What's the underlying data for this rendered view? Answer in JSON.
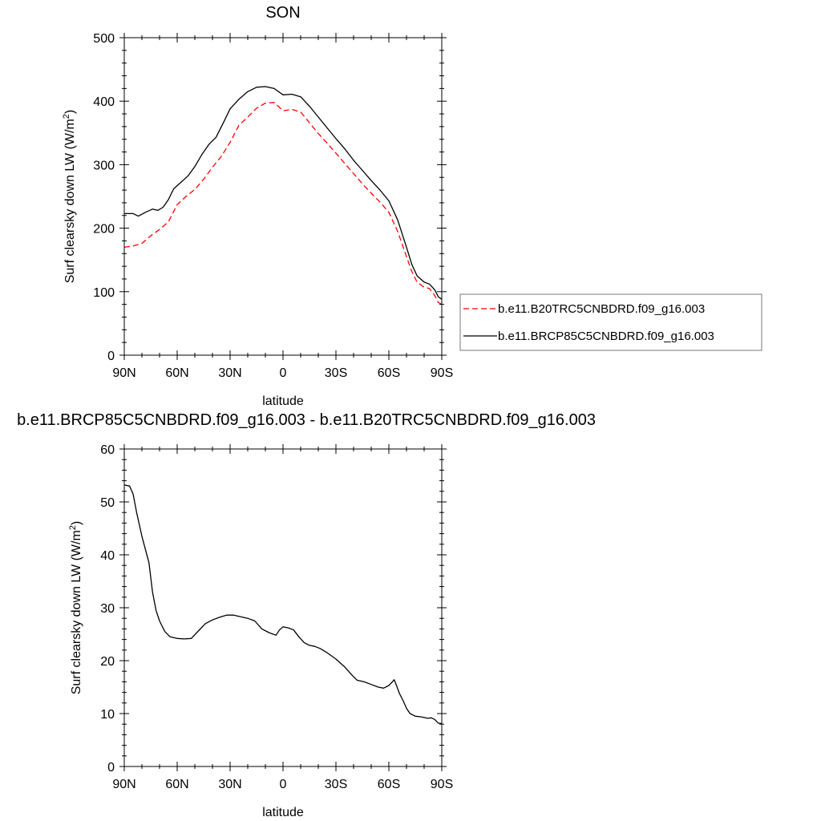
{
  "chart_data": [
    {
      "type": "line",
      "title": "SON",
      "xlabel": "latitude",
      "ylabel": "Surf clearsky down LW (W/m",
      "ylabel_sup": "2",
      "ylabel_close": ")",
      "xlim": [
        90,
        -90
      ],
      "ylim": [
        0,
        500
      ],
      "x_ticks": [
        90,
        60,
        30,
        0,
        -30,
        -60,
        -90
      ],
      "x_tick_labels": [
        "90N",
        "60N",
        "30N",
        "0",
        "30S",
        "60S",
        "90S"
      ],
      "y_ticks": [
        0,
        100,
        200,
        300,
        400,
        500
      ],
      "y_tick_labels": [
        "0",
        "100",
        "200",
        "300",
        "400",
        "500"
      ],
      "legend_position": "right",
      "series": [
        {
          "name": "b.e11.B20TRC5CNBDRD.f09_g16.003",
          "color": "#ff0000",
          "dash": "dashed",
          "points": [
            [
              90,
              170
            ],
            [
              85,
              172
            ],
            [
              80,
              176
            ],
            [
              75,
              188
            ],
            [
              70,
              198
            ],
            [
              65,
              210
            ],
            [
              60,
              237
            ],
            [
              55,
              250
            ],
            [
              50,
              261
            ],
            [
              45,
              277
            ],
            [
              40,
              296
            ],
            [
              35,
              313
            ],
            [
              30,
              335
            ],
            [
              25,
              362
            ],
            [
              20,
              375
            ],
            [
              15,
              389
            ],
            [
              10,
              397
            ],
            [
              5,
              398
            ],
            [
              0,
              385
            ],
            [
              -5,
              387
            ],
            [
              -10,
              383
            ],
            [
              -15,
              366
            ],
            [
              -20,
              349
            ],
            [
              -25,
              334
            ],
            [
              -30,
              318
            ],
            [
              -35,
              302
            ],
            [
              -40,
              286
            ],
            [
              -45,
              270
            ],
            [
              -50,
              255
            ],
            [
              -55,
              241
            ],
            [
              -60,
              225
            ],
            [
              -65,
              195
            ],
            [
              -70,
              155
            ],
            [
              -73,
              132
            ],
            [
              -76,
              115
            ],
            [
              -80,
              107
            ],
            [
              -83,
              105
            ],
            [
              -86,
              94
            ],
            [
              -88,
              83
            ],
            [
              -90,
              80
            ]
          ]
        },
        {
          "name": "b.e11.BRCP85C5CNBDRD.f09_g16.003",
          "color": "#000000",
          "dash": "solid",
          "points": [
            [
              90,
              223
            ],
            [
              85,
              223
            ],
            [
              82,
              219
            ],
            [
              78,
              225
            ],
            [
              74,
              230
            ],
            [
              71,
              228
            ],
            [
              68,
              233
            ],
            [
              65,
              245
            ],
            [
              62,
              262
            ],
            [
              58,
              272
            ],
            [
              54,
              282
            ],
            [
              50,
              297
            ],
            [
              46,
              316
            ],
            [
              42,
              332
            ],
            [
              38,
              343
            ],
            [
              34,
              365
            ],
            [
              30,
              388
            ],
            [
              25,
              403
            ],
            [
              20,
              415
            ],
            [
              15,
              422
            ],
            [
              10,
              423
            ],
            [
              5,
              420
            ],
            [
              0,
              410
            ],
            [
              -5,
              411
            ],
            [
              -10,
              407
            ],
            [
              -15,
              392
            ],
            [
              -20,
              375
            ],
            [
              -25,
              358
            ],
            [
              -30,
              341
            ],
            [
              -35,
              325
            ],
            [
              -40,
              307
            ],
            [
              -45,
              291
            ],
            [
              -50,
              275
            ],
            [
              -55,
              260
            ],
            [
              -60,
              243
            ],
            [
              -65,
              213
            ],
            [
              -70,
              170
            ],
            [
              -73,
              143
            ],
            [
              -76,
              125
            ],
            [
              -80,
              115
            ],
            [
              -83,
              112
            ],
            [
              -86,
              103
            ],
            [
              -88,
              92
            ],
            [
              -90,
              88
            ]
          ]
        }
      ]
    },
    {
      "type": "line",
      "title": "b.e11.BRCP85C5CNBDRD.f09_g16.003 - b.e11.B20TRC5CNBDRD.f09_g16.003",
      "xlabel": "latitude",
      "ylabel": "Surf clearsky down LW (W/m",
      "ylabel_sup": "2",
      "ylabel_close": ")",
      "xlim": [
        90,
        -90
      ],
      "ylim": [
        0,
        60
      ],
      "x_ticks": [
        90,
        60,
        30,
        0,
        -30,
        -60,
        -90
      ],
      "x_tick_labels": [
        "90N",
        "60N",
        "30N",
        "0",
        "30S",
        "60S",
        "90S"
      ],
      "y_ticks": [
        0,
        10,
        20,
        30,
        40,
        50,
        60
      ],
      "y_tick_labels": [
        "0",
        "10",
        "20",
        "30",
        "40",
        "50",
        "60"
      ],
      "series": [
        {
          "color": "#000000",
          "dash": "solid",
          "points": [
            [
              90,
              53.2
            ],
            [
              87,
              53.0
            ],
            [
              85,
              51.5
            ],
            [
              83,
              48
            ],
            [
              80,
              43.5
            ],
            [
              76,
              38.5
            ],
            [
              74,
              33
            ],
            [
              72,
              29.5
            ],
            [
              70,
              27.5
            ],
            [
              67,
              25.5
            ],
            [
              64,
              24.5
            ],
            [
              60,
              24.2
            ],
            [
              56,
              24.1
            ],
            [
              52,
              24.2
            ],
            [
              48,
              25.6
            ],
            [
              44,
              27
            ],
            [
              40,
              27.7
            ],
            [
              36,
              28.2
            ],
            [
              32,
              28.6
            ],
            [
              28,
              28.6
            ],
            [
              24,
              28.3
            ],
            [
              20,
              28
            ],
            [
              16,
              27.5
            ],
            [
              12,
              26
            ],
            [
              8,
              25.3
            ],
            [
              4,
              24.8
            ],
            [
              2,
              25.8
            ],
            [
              0,
              26.4
            ],
            [
              -3,
              26.2
            ],
            [
              -6,
              25.8
            ],
            [
              -9,
              24.5
            ],
            [
              -12,
              23.4
            ],
            [
              -15,
              22.9
            ],
            [
              -18,
              22.7
            ],
            [
              -21,
              22.3
            ],
            [
              -25,
              21.5
            ],
            [
              -30,
              20.3
            ],
            [
              -35,
              18.8
            ],
            [
              -39,
              17.3
            ],
            [
              -42,
              16.3
            ],
            [
              -46,
              16
            ],
            [
              -50,
              15.5
            ],
            [
              -54,
              15
            ],
            [
              -57,
              14.8
            ],
            [
              -60,
              15.3
            ],
            [
              -62,
              16
            ],
            [
              -63,
              16.4
            ],
            [
              -64,
              15.6
            ],
            [
              -66,
              13.8
            ],
            [
              -68,
              12.5
            ],
            [
              -70,
              11
            ],
            [
              -72,
              10
            ],
            [
              -75,
              9.5
            ],
            [
              -78,
              9.4
            ],
            [
              -82,
              9.1
            ],
            [
              -84,
              9.2
            ],
            [
              -86,
              8.9
            ],
            [
              -88,
              8.2
            ],
            [
              -90,
              8.1
            ]
          ]
        }
      ]
    }
  ]
}
